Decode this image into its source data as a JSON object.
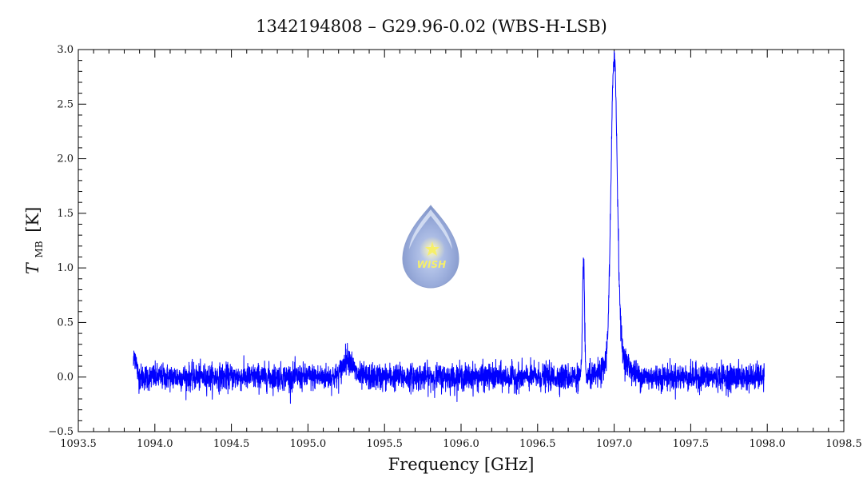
{
  "chart_data": {
    "type": "line",
    "title": "1342194808 – G29.96-0.02 (WBS-H-LSB)",
    "xlabel": "Frequency [GHz]",
    "ylabel_main": "T",
    "ylabel_sub": "MB",
    "ylabel_unit": "[K]",
    "xlim": [
      1093.5,
      1098.5
    ],
    "ylim": [
      -0.5,
      3.0
    ],
    "x_ticks": [
      1093.5,
      1094.0,
      1094.5,
      1095.0,
      1095.5,
      1096.0,
      1096.5,
      1097.0,
      1097.5,
      1098.0,
      1098.5
    ],
    "x_tick_labels": [
      "1093.5",
      "1094.0",
      "1094.5",
      "1095.0",
      "1095.5",
      "1096.0",
      "1096.5",
      "1097.0",
      "1097.5",
      "1098.0",
      "1098.5"
    ],
    "y_ticks": [
      -0.5,
      0.0,
      0.5,
      1.0,
      1.5,
      2.0,
      2.5,
      3.0
    ],
    "y_tick_labels": [
      "−0.5",
      "0.0",
      "0.5",
      "1.0",
      "1.5",
      "2.0",
      "2.5",
      "3.0"
    ],
    "grid": false,
    "line_color": "#0000ff",
    "series": [
      {
        "x_range": [
          1093.86,
          1097.98
        ],
        "baseline": 0.0,
        "noise_rms": 0.06,
        "features": [
          {
            "center": 1093.87,
            "amplitude": 0.2,
            "width": 0.01
          },
          {
            "center": 1095.26,
            "amplitude": 0.18,
            "width": 0.03
          },
          {
            "center": 1096.8,
            "amplitude": 1.12,
            "width": 0.006
          },
          {
            "center": 1097.0,
            "amplitude": 2.75,
            "width": 0.02
          },
          {
            "center": 1097.02,
            "amplitude": 0.22,
            "width": 0.06
          }
        ]
      }
    ]
  },
  "logo": {
    "text": "WISH",
    "fill_color": "#aab8e0",
    "star_color": "#f6ef6a"
  }
}
